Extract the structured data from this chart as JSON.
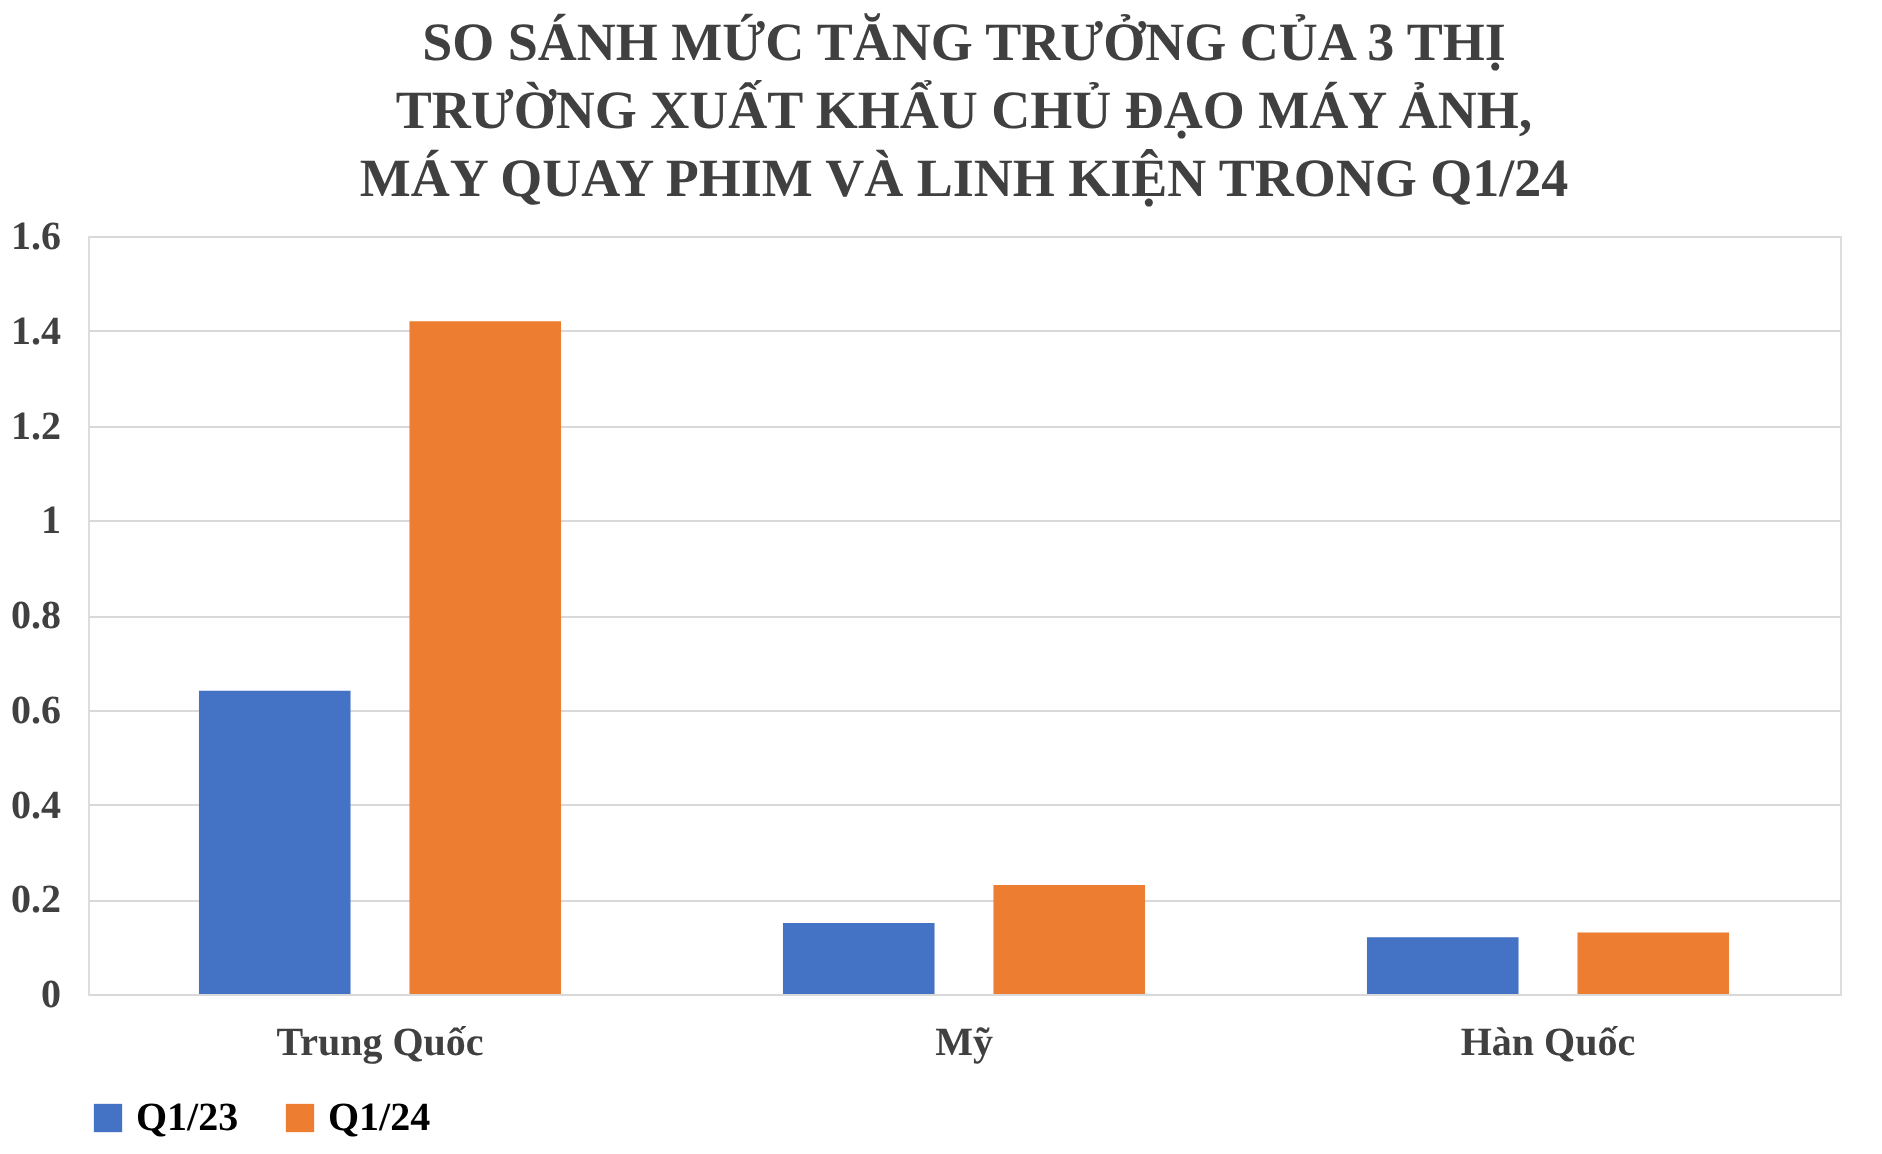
{
  "chart_data": {
    "type": "bar",
    "title": [
      "SO SÁNH MỨC TĂNG TRƯỞNG CỦA 3 THỊ",
      "TRƯỜNG XUẤT KHẨU CHỦ ĐẠO MÁY ẢNH,",
      "MÁY QUAY PHIM VÀ LINH KIỆN TRONG Q1/24"
    ],
    "categories": [
      "Trung Quốc",
      "Mỹ",
      "Hàn Quốc"
    ],
    "series": [
      {
        "name": "Q1/23",
        "color": "#4472c4",
        "values": [
          0.64,
          0.15,
          0.12
        ]
      },
      {
        "name": "Q1/24",
        "color": "#ed7d31",
        "values": [
          1.42,
          0.23,
          0.13
        ]
      }
    ],
    "ylim": [
      0,
      1.6
    ],
    "yticks": [
      0,
      {
        "value": 0.2,
        "label": "0.2"
      },
      {
        "value": 0.4,
        "label": "0.4"
      },
      {
        "value": 0.6,
        "label": "0.6"
      },
      {
        "value": 0.8,
        "label": "0.8"
      },
      1,
      {
        "value": 1.2,
        "label": "1.2"
      },
      {
        "value": 1.4,
        "label": "1.4"
      },
      {
        "value": 1.6,
        "label": "1.6"
      }
    ],
    "grid": "y",
    "legend": "bottom"
  }
}
